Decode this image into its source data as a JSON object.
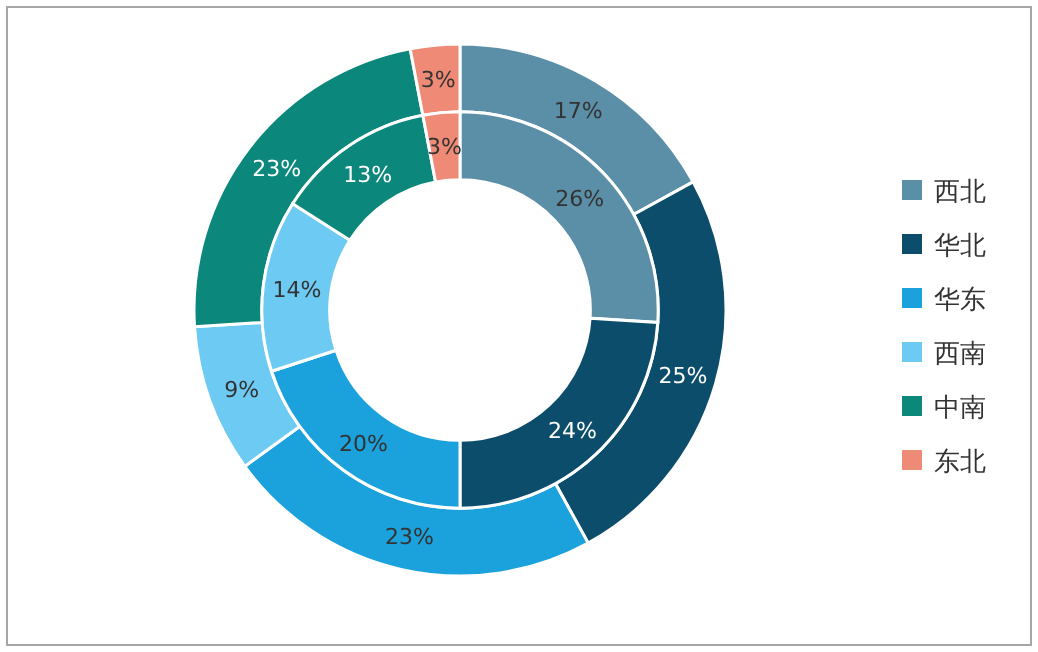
{
  "chart_data": {
    "type": "donut",
    "categories": [
      "西北",
      "华北",
      "华东",
      "西南",
      "中南",
      "东北"
    ],
    "colors": [
      "#5b8fa7",
      "#0c4d6b",
      "#1ba1dc",
      "#6dcaf2",
      "#0b877b",
      "#ef8a77"
    ],
    "series": [
      {
        "values": [
          17,
          25,
          23,
          9,
          23,
          3
        ],
        "value_labels": [
          "17%",
          "25%",
          "23%",
          "9%",
          "23%",
          "3%"
        ]
      },
      {
        "values": [
          26,
          24,
          20,
          14,
          13,
          3
        ],
        "value_labels": [
          "26%",
          "24%",
          "20%",
          "14%",
          "13%",
          "3%"
        ]
      }
    ],
    "legend": "right"
  }
}
